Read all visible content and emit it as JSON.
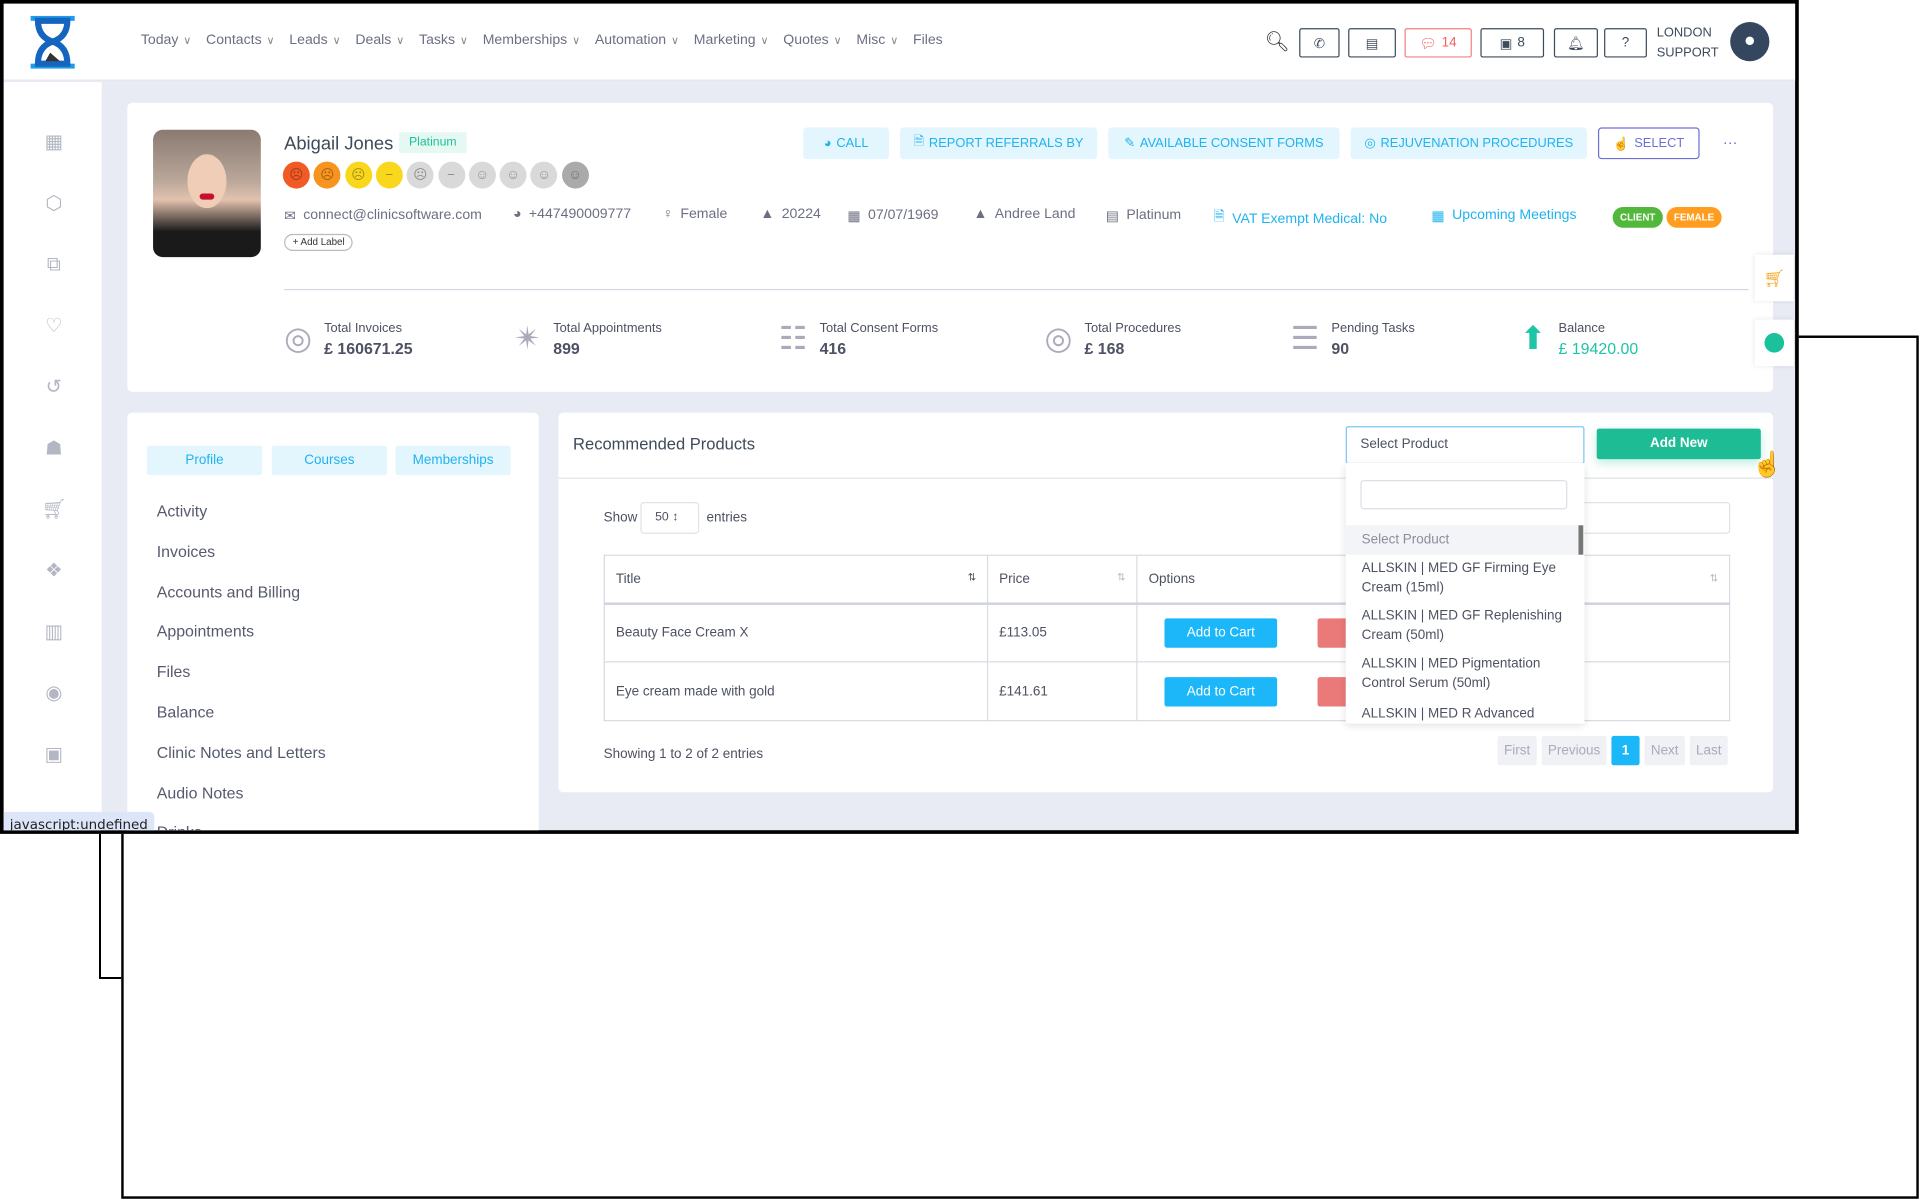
{
  "nav": {
    "items": [
      {
        "label": "Today"
      },
      {
        "label": "Contacts"
      },
      {
        "label": "Leads"
      },
      {
        "label": "Deals"
      },
      {
        "label": "Tasks"
      },
      {
        "label": "Memberships"
      },
      {
        "label": "Automation"
      },
      {
        "label": "Marketing"
      },
      {
        "label": "Quotes"
      },
      {
        "label": "Misc"
      },
      {
        "label": "Files",
        "no_chevron": true
      }
    ]
  },
  "header": {
    "chat_count": "14",
    "store_count": "8",
    "user_line1": "LONDON",
    "user_line2": "SUPPORT"
  },
  "profile": {
    "name": "Abigail Jones",
    "tier_badge": "Platinum",
    "email": "connect@clinicsoftware.com",
    "phone": "+447490009777",
    "gender": "Female",
    "id": "20224",
    "dob": "07/07/1969",
    "owner": "Andree Land",
    "membership": "Platinum",
    "vat": "VAT Exempt Medical: No",
    "meetings": "Upcoming Meetings",
    "add_label": "+ Add Label",
    "tags": [
      {
        "label": "CLIENT",
        "color": "#52b83c"
      },
      {
        "label": "FEMALE",
        "color": "#ff9d1e"
      }
    ],
    "satisfaction_faces": [
      "#f15a24",
      "#f7931e",
      "#f9d71c",
      "#f9d71c",
      "#d9d9d9",
      "#d9d9d9",
      "#d9d9d9",
      "#d9d9d9",
      "#d9d9d9",
      "#aaaaaa"
    ],
    "actions": {
      "call": "CALL",
      "report": "REPORT REFERRALS BY",
      "consent": "AVAILABLE CONSENT FORMS",
      "rejuvenation": "REJUVENATION PROCEDURES",
      "select": "SELECT",
      "more": "···"
    }
  },
  "stats": [
    {
      "label": "Total Invoices",
      "value": "£ 160671.25"
    },
    {
      "label": "Total Appointments",
      "value": "899"
    },
    {
      "label": "Total Consent Forms",
      "value": "416"
    },
    {
      "label": "Total Procedures",
      "value": "£ 168"
    },
    {
      "label": "Pending Tasks",
      "value": "90"
    },
    {
      "label": "Balance",
      "value": "£ 19420.00"
    }
  ],
  "left": {
    "tabs": [
      "Profile",
      "Courses",
      "Memberships"
    ],
    "menu": [
      "Activity",
      "Invoices",
      "Accounts and Billing",
      "Appointments",
      "Files",
      "Balance",
      "Clinic Notes and Letters",
      "Audio Notes",
      "Drinks"
    ]
  },
  "products": {
    "title": "Recommended Products",
    "select_placeholder": "Select Product",
    "add_new": "Add New",
    "show": "Show",
    "entries_value": "50",
    "entries": "entries",
    "columns": [
      "Title",
      "Price",
      "Options"
    ],
    "rows": [
      {
        "title": "Beauty Face Cream X",
        "price": "£113.05",
        "add": "Add to Cart"
      },
      {
        "title": "Eye cream made with gold",
        "price": "£141.61",
        "add": "Add to Cart"
      }
    ],
    "showing": "Showing 1 to 2 of 2 entries",
    "pagination": {
      "first": "First",
      "previous": "Previous",
      "current": "1",
      "next": "Next",
      "last": "Last"
    },
    "dropdown": [
      "Select Product",
      "ALLSKIN | MED GF Firming Eye Cream (15ml)",
      "ALLSKIN | MED GF Replenishing Cream (50ml)",
      "ALLSKIN | MED Pigmentation Control Serum (50ml)",
      "ALLSKIN | MED R Advanced"
    ]
  },
  "status_bar": "javascript:undefined"
}
